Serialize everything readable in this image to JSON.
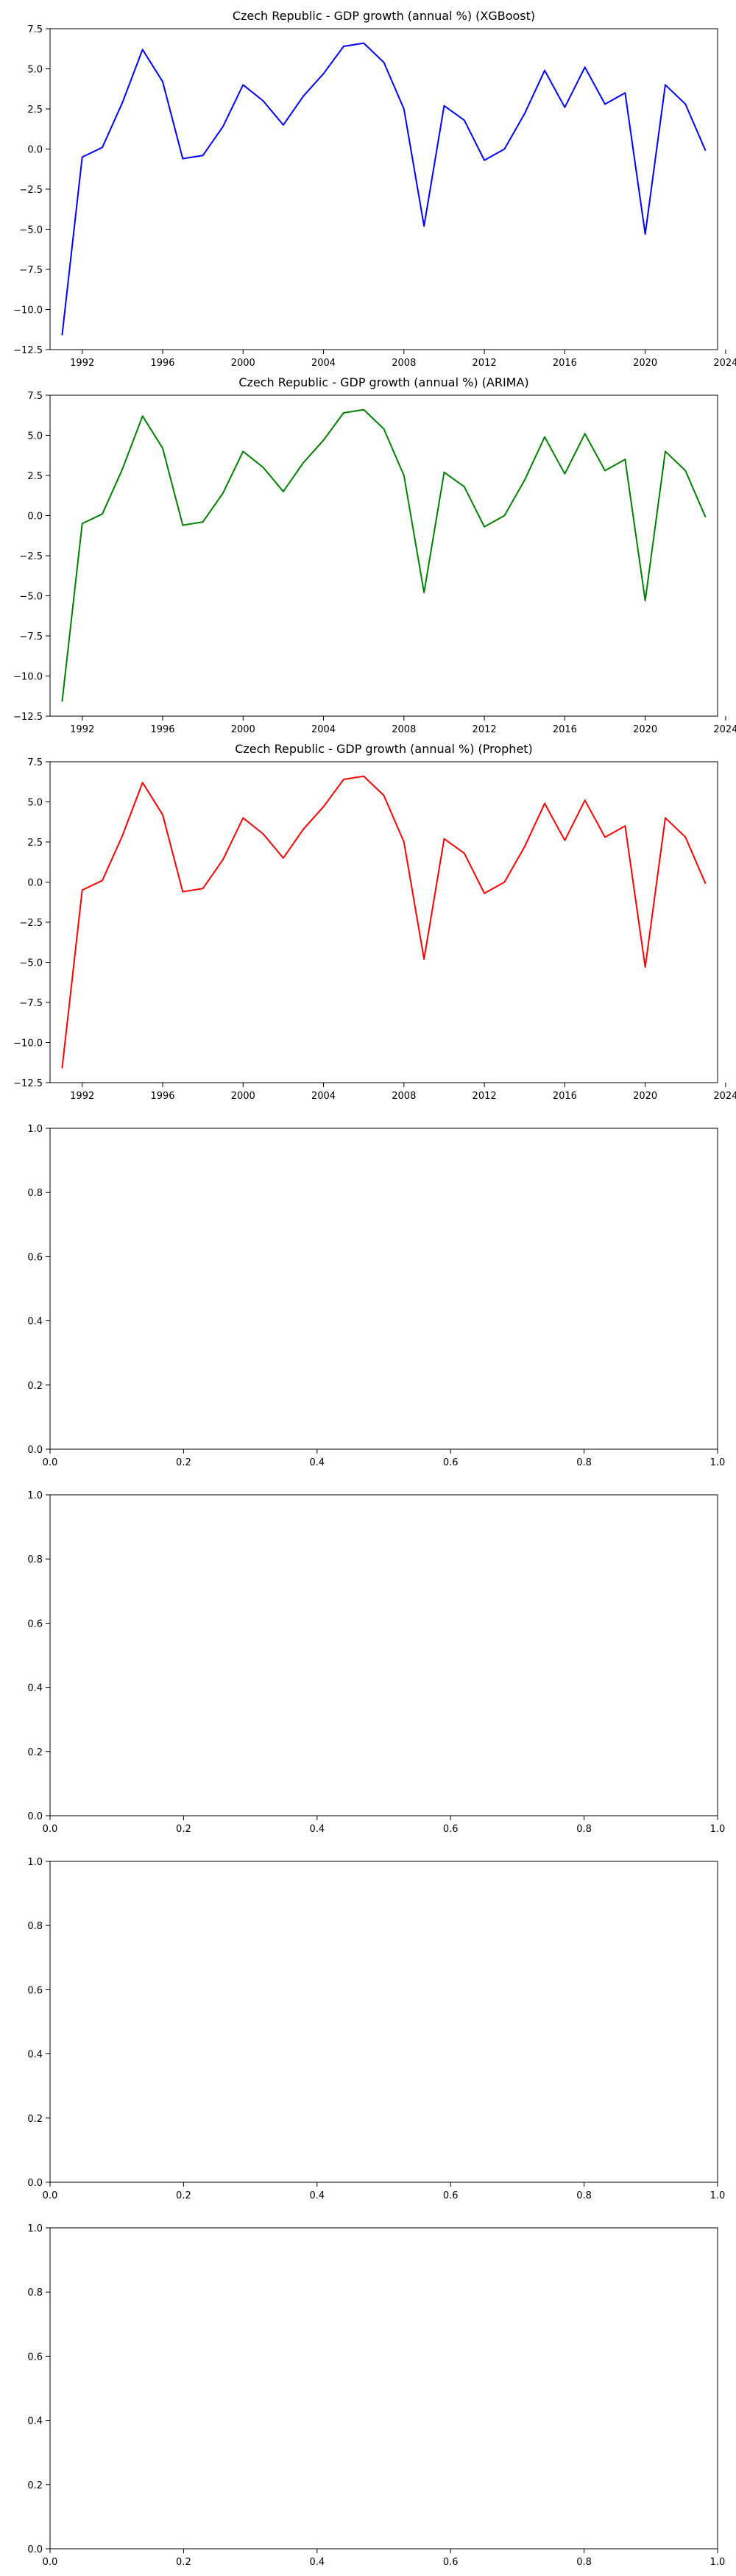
{
  "chart_data": [
    {
      "type": "line",
      "title": "Czech Republic - GDP growth (annual %) (XGBoost)",
      "xlim": [
        1990.4,
        2023.6
      ],
      "ylim": [
        -12.5,
        7.5
      ],
      "xticks": [
        1992,
        1996,
        2000,
        2004,
        2008,
        2012,
        2016,
        2020,
        2024
      ],
      "yticks": [
        -12.5,
        -10.0,
        -7.5,
        -5.0,
        -2.5,
        0.0,
        2.5,
        5.0,
        7.5
      ],
      "xtick_labels": [
        "1992",
        "1996",
        "2000",
        "2004",
        "2008",
        "2012",
        "2016",
        "2020",
        "2024"
      ],
      "ytick_labels": [
        "−12.5",
        "−10.0",
        "−7.5",
        "−5.0",
        "−2.5",
        "0.0",
        "2.5",
        "5.0",
        "7.5"
      ],
      "color": "#0000ff",
      "x": [
        1991,
        1992,
        1993,
        1994,
        1995,
        1996,
        1997,
        1998,
        1999,
        2000,
        2001,
        2002,
        2003,
        2004,
        2005,
        2006,
        2007,
        2008,
        2009,
        2010,
        2011,
        2012,
        2013,
        2014,
        2015,
        2016,
        2017,
        2018,
        2019,
        2020,
        2021,
        2022,
        2023
      ],
      "y": [
        -11.6,
        -0.5,
        0.1,
        2.9,
        6.2,
        4.2,
        -0.6,
        -0.4,
        1.4,
        4.0,
        3.0,
        1.5,
        3.3,
        4.7,
        6.4,
        6.6,
        5.4,
        2.5,
        -4.8,
        2.7,
        1.8,
        -0.7,
        0.0,
        2.2,
        4.9,
        2.6,
        5.1,
        2.8,
        3.5,
        -5.3,
        4.0,
        2.8,
        -0.1
      ]
    },
    {
      "type": "line",
      "title": "Czech Republic - GDP growth (annual %) (ARIMA)",
      "xlim": [
        1990.4,
        2023.6
      ],
      "ylim": [
        -12.5,
        7.5
      ],
      "xticks": [
        1992,
        1996,
        2000,
        2004,
        2008,
        2012,
        2016,
        2020,
        2024
      ],
      "yticks": [
        -12.5,
        -10.0,
        -7.5,
        -5.0,
        -2.5,
        0.0,
        2.5,
        5.0,
        7.5
      ],
      "xtick_labels": [
        "1992",
        "1996",
        "2000",
        "2004",
        "2008",
        "2012",
        "2016",
        "2020",
        "2024"
      ],
      "ytick_labels": [
        "−12.5",
        "−10.0",
        "−7.5",
        "−5.0",
        "−2.5",
        "0.0",
        "2.5",
        "5.0",
        "7.5"
      ],
      "color": "#008000",
      "x": [
        1991,
        1992,
        1993,
        1994,
        1995,
        1996,
        1997,
        1998,
        1999,
        2000,
        2001,
        2002,
        2003,
        2004,
        2005,
        2006,
        2007,
        2008,
        2009,
        2010,
        2011,
        2012,
        2013,
        2014,
        2015,
        2016,
        2017,
        2018,
        2019,
        2020,
        2021,
        2022,
        2023
      ],
      "y": [
        -11.6,
        -0.5,
        0.1,
        2.9,
        6.2,
        4.2,
        -0.6,
        -0.4,
        1.4,
        4.0,
        3.0,
        1.5,
        3.3,
        4.7,
        6.4,
        6.6,
        5.4,
        2.5,
        -4.8,
        2.7,
        1.8,
        -0.7,
        0.0,
        2.2,
        4.9,
        2.6,
        5.1,
        2.8,
        3.5,
        -5.3,
        4.0,
        2.8,
        -0.1
      ]
    },
    {
      "type": "line",
      "title": "Czech Republic - GDP growth (annual %) (Prophet)",
      "xlim": [
        1990.4,
        2023.6
      ],
      "ylim": [
        -12.5,
        7.5
      ],
      "xticks": [
        1992,
        1996,
        2000,
        2004,
        2008,
        2012,
        2016,
        2020,
        2024
      ],
      "yticks": [
        -12.5,
        -10.0,
        -7.5,
        -5.0,
        -2.5,
        0.0,
        2.5,
        5.0,
        7.5
      ],
      "xtick_labels": [
        "1992",
        "1996",
        "2000",
        "2004",
        "2008",
        "2012",
        "2016",
        "2020",
        "2024"
      ],
      "ytick_labels": [
        "−12.5",
        "−10.0",
        "−7.5",
        "−5.0",
        "−2.5",
        "0.0",
        "2.5",
        "5.0",
        "7.5"
      ],
      "color": "#ff0000",
      "x": [
        1991,
        1992,
        1993,
        1994,
        1995,
        1996,
        1997,
        1998,
        1999,
        2000,
        2001,
        2002,
        2003,
        2004,
        2005,
        2006,
        2007,
        2008,
        2009,
        2010,
        2011,
        2012,
        2013,
        2014,
        2015,
        2016,
        2017,
        2018,
        2019,
        2020,
        2021,
        2022,
        2023
      ],
      "y": [
        -11.6,
        -0.5,
        0.1,
        2.9,
        6.2,
        4.2,
        -0.6,
        -0.4,
        1.4,
        4.0,
        3.0,
        1.5,
        3.3,
        4.7,
        6.4,
        6.6,
        5.4,
        2.5,
        -4.8,
        2.7,
        1.8,
        -0.7,
        0.0,
        2.2,
        4.9,
        2.6,
        5.1,
        2.8,
        3.5,
        -5.3,
        4.0,
        2.8,
        -0.1
      ]
    },
    {
      "type": "line",
      "title": "",
      "xlim": [
        0.0,
        1.0
      ],
      "ylim": [
        0.0,
        1.0
      ],
      "xticks": [
        0.0,
        0.2,
        0.4,
        0.6,
        0.8,
        1.0
      ],
      "yticks": [
        0.0,
        0.2,
        0.4,
        0.6,
        0.8,
        1.0
      ],
      "xtick_labels": [
        "0.0",
        "0.2",
        "0.4",
        "0.6",
        "0.8",
        "1.0"
      ],
      "ytick_labels": [
        "0.0",
        "0.2",
        "0.4",
        "0.6",
        "0.8",
        "1.0"
      ],
      "x": [],
      "y": []
    },
    {
      "type": "line",
      "title": "",
      "xlim": [
        0.0,
        1.0
      ],
      "ylim": [
        0.0,
        1.0
      ],
      "xticks": [
        0.0,
        0.2,
        0.4,
        0.6,
        0.8,
        1.0
      ],
      "yticks": [
        0.0,
        0.2,
        0.4,
        0.6,
        0.8,
        1.0
      ],
      "xtick_labels": [
        "0.0",
        "0.2",
        "0.4",
        "0.6",
        "0.8",
        "1.0"
      ],
      "ytick_labels": [
        "0.0",
        "0.2",
        "0.4",
        "0.6",
        "0.8",
        "1.0"
      ],
      "x": [],
      "y": []
    },
    {
      "type": "line",
      "title": "",
      "xlim": [
        0.0,
        1.0
      ],
      "ylim": [
        0.0,
        1.0
      ],
      "xticks": [
        0.0,
        0.2,
        0.4,
        0.6,
        0.8,
        1.0
      ],
      "yticks": [
        0.0,
        0.2,
        0.4,
        0.6,
        0.8,
        1.0
      ],
      "xtick_labels": [
        "0.0",
        "0.2",
        "0.4",
        "0.6",
        "0.8",
        "1.0"
      ],
      "ytick_labels": [
        "0.0",
        "0.2",
        "0.4",
        "0.6",
        "0.8",
        "1.0"
      ],
      "x": [],
      "y": []
    },
    {
      "type": "line",
      "title": "",
      "xlim": [
        0.0,
        1.0
      ],
      "ylim": [
        0.0,
        1.0
      ],
      "xticks": [
        0.0,
        0.2,
        0.4,
        0.6,
        0.8,
        1.0
      ],
      "yticks": [
        0.0,
        0.2,
        0.4,
        0.6,
        0.8,
        1.0
      ],
      "xtick_labels": [
        "0.0",
        "0.2",
        "0.4",
        "0.6",
        "0.8",
        "1.0"
      ],
      "ytick_labels": [
        "0.0",
        "0.2",
        "0.4",
        "0.6",
        "0.8",
        "1.0"
      ],
      "x": [],
      "y": []
    }
  ]
}
